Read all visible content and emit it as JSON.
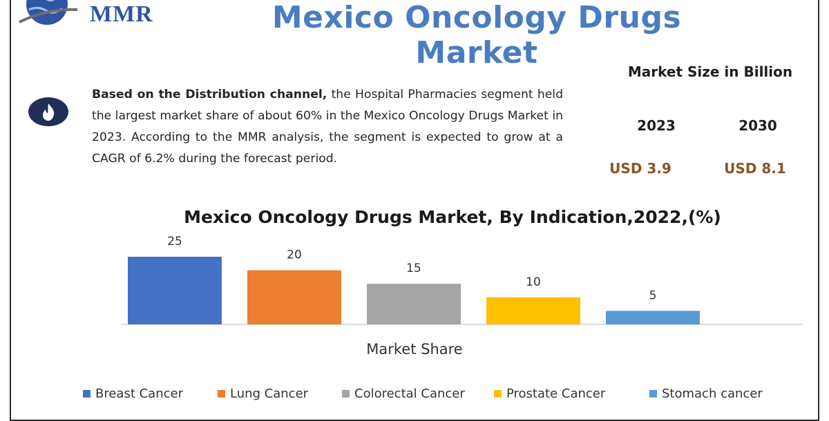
{
  "header": {
    "logo_text": "MMR",
    "title": "Mexico Oncology Drugs Market"
  },
  "summary": {
    "icon": "flame-icon",
    "lead": "Based on the Distribution channel,",
    "body": " the Hospital Pharmacies segment held the largest market share of about 60% in the Mexico Oncology Drugs Market in 2023. According to the MMR analysis, the segment is expected to grow at a CAGR of 6.2% during the forecast period."
  },
  "market_size": {
    "title": "Market Size in Billion",
    "years": [
      "2023",
      "2030"
    ],
    "values": [
      "USD 3.9",
      "USD 8.1"
    ],
    "value_color": "#8b5526"
  },
  "chart_data": {
    "type": "bar",
    "title": "Mexico Oncology Drugs Market, By Indication,2022,(%)",
    "xlabel": "Market Share",
    "ylabel": "",
    "categories": [
      "Breast Cancer",
      "Lung Cancer",
      "Colorectal Cancer",
      "Prostate Cancer",
      "Stomach cancer"
    ],
    "values": [
      25,
      20,
      15,
      10,
      5
    ],
    "data_labels": [
      "25",
      "20",
      "15",
      "10",
      "5"
    ],
    "colors": [
      "#4472c4",
      "#ed7d31",
      "#a5a5a5",
      "#ffc000",
      "#5b9bd5"
    ],
    "ylim": [
      0,
      25
    ],
    "grid": false,
    "legend_position": "bottom"
  }
}
